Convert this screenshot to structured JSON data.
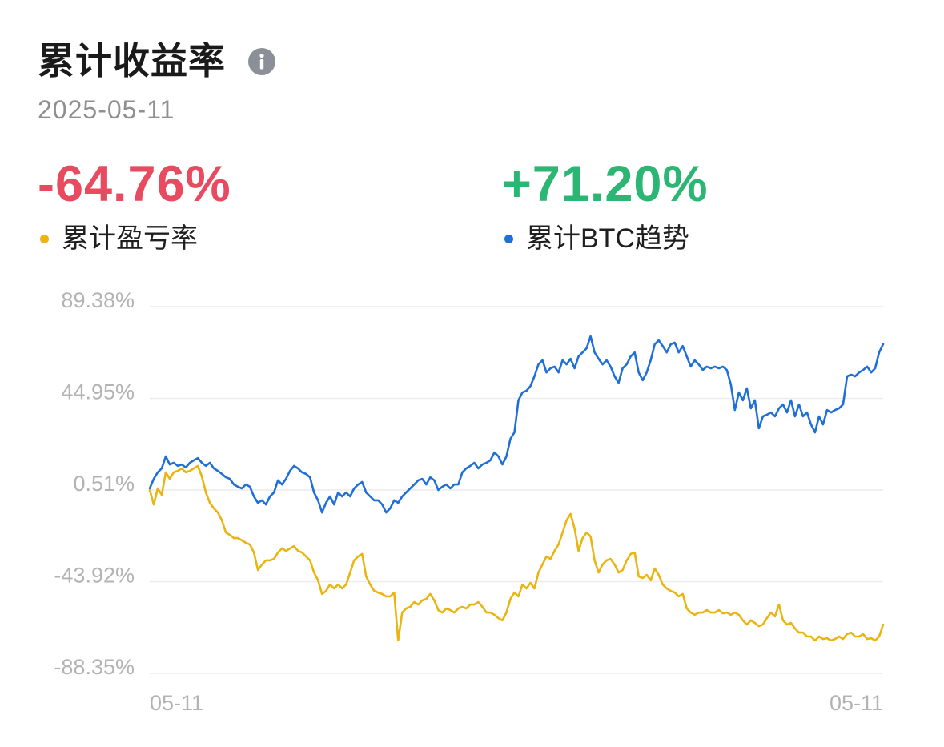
{
  "icons": {
    "info": "info-icon"
  },
  "chart_data": {
    "type": "line",
    "title": "累计收益率",
    "subtitle": "2025-05-11",
    "grid": true,
    "legend": "top",
    "ylim": [
      -88.35,
      89.38
    ],
    "y_ticks": [
      89.38,
      44.95,
      0.51,
      -43.92,
      -88.35
    ],
    "y_tick_labels": [
      "89.38%",
      "44.95%",
      "0.51%",
      "-43.92%",
      "-88.35%"
    ],
    "x_tick_labels": [
      "05-11",
      "05-11"
    ],
    "series": [
      {
        "name": "累计盈亏率",
        "latest_label": "-64.76%",
        "color": "#ebb40f",
        "value_color": "#e84a5f",
        "values": [
          0.5,
          -6.5,
          1.3,
          -1.8,
          9.1,
          5.9,
          9.1,
          9.8,
          11.0,
          9.1,
          9.8,
          11.0,
          12.2,
          7.1,
          -0.7,
          -5.7,
          -8.4,
          -10.4,
          -14.2,
          -20.1,
          -21.2,
          -22.8,
          -22.8,
          -23.9,
          -25.1,
          -25.9,
          -29.8,
          -38.3,
          -35.6,
          -33.6,
          -33.6,
          -32.9,
          -29.8,
          -27.8,
          -29.0,
          -27.8,
          -26.7,
          -29.0,
          -29.8,
          -31.7,
          -33.6,
          -39.5,
          -43.3,
          -49.9,
          -48.4,
          -45.3,
          -47.2,
          -45.3,
          -47.2,
          -45.3,
          -39.5,
          -33.6,
          -31.7,
          -30.5,
          -41.4,
          -45.3,
          -48.4,
          -49.2,
          -49.9,
          -51.1,
          -51.1,
          -49.2,
          -72.4,
          -58.9,
          -56.9,
          -56.1,
          -53.8,
          -55.0,
          -53.0,
          -52.3,
          -49.9,
          -53.0,
          -57.7,
          -58.9,
          -56.9,
          -57.7,
          -58.9,
          -56.9,
          -56.1,
          -56.9,
          -55.0,
          -55.0,
          -53.8,
          -56.1,
          -58.9,
          -58.9,
          -60.0,
          -61.6,
          -62.7,
          -58.9,
          -52.3,
          -49.2,
          -51.1,
          -45.3,
          -47.2,
          -44.5,
          -47.2,
          -39.5,
          -35.6,
          -31.7,
          -32.9,
          -29.0,
          -25.9,
          -20.1,
          -14.2,
          -11.1,
          -18.1,
          -29.0,
          -22.8,
          -20.1,
          -22.0,
          -33.6,
          -39.5,
          -35.6,
          -33.6,
          -32.9,
          -35.6,
          -39.5,
          -38.3,
          -33.6,
          -30.5,
          -29.8,
          -41.4,
          -42.2,
          -40.6,
          -43.3,
          -37.5,
          -40.6,
          -45.3,
          -47.2,
          -48.4,
          -49.2,
          -51.1,
          -49.9,
          -56.9,
          -58.9,
          -60.0,
          -58.9,
          -58.9,
          -57.7,
          -58.9,
          -58.9,
          -57.7,
          -59.3,
          -58.9,
          -60.0,
          -58.9,
          -60.0,
          -62.7,
          -64.7,
          -62.7,
          -63.9,
          -65.5,
          -64.7,
          -61.6,
          -58.9,
          -60.8,
          -55.0,
          -62.7,
          -64.7,
          -63.9,
          -66.6,
          -68.6,
          -68.6,
          -70.5,
          -70.5,
          -72.4,
          -70.5,
          -71.7,
          -71.3,
          -72.4,
          -71.7,
          -70.5,
          -71.7,
          -69.3,
          -68.6,
          -70.5,
          -70.5,
          -69.3,
          -71.7,
          -71.3,
          -72.4,
          -70.5,
          -64.76
        ]
      },
      {
        "name": "累计BTC趋势",
        "latest_label": "+71.20%",
        "color": "#1f6fda",
        "value_color": "#2bb673",
        "values": [
          1.3,
          5.9,
          9.1,
          11.0,
          16.8,
          12.9,
          13.7,
          12.2,
          12.9,
          11.4,
          13.7,
          14.9,
          16.0,
          13.7,
          12.2,
          13.7,
          11.0,
          9.8,
          8.3,
          6.7,
          5.9,
          3.2,
          2.1,
          1.3,
          3.2,
          2.1,
          -2.6,
          -5.7,
          -4.5,
          -6.5,
          -2.6,
          -0.7,
          5.2,
          3.2,
          5.9,
          9.8,
          12.2,
          11.0,
          9.1,
          8.3,
          6.7,
          -0.7,
          -4.5,
          -10.4,
          -5.7,
          -2.6,
          -6.5,
          -0.7,
          -2.6,
          -0.7,
          -2.6,
          1.3,
          3.2,
          4.4,
          -0.7,
          -2.6,
          -4.5,
          -4.5,
          -6.5,
          -10.4,
          -8.4,
          -4.5,
          -5.7,
          -2.6,
          -0.7,
          1.3,
          3.2,
          5.2,
          5.9,
          3.2,
          6.7,
          5.2,
          0.5,
          2.1,
          3.2,
          1.3,
          3.2,
          3.2,
          9.1,
          11.0,
          12.2,
          13.7,
          11.0,
          12.9,
          13.7,
          14.9,
          18.7,
          16.8,
          12.9,
          16.8,
          25.3,
          28.4,
          44.0,
          47.8,
          48.6,
          50.9,
          55.6,
          61.4,
          63.4,
          57.5,
          59.5,
          60.3,
          57.5,
          63.4,
          61.4,
          64.1,
          59.5,
          65.3,
          67.2,
          69.2,
          75.0,
          67.2,
          64.1,
          61.4,
          63.4,
          60.3,
          55.6,
          52.5,
          59.5,
          61.4,
          65.3,
          67.2,
          57.5,
          53.7,
          57.5,
          63.4,
          71.1,
          73.1,
          70.3,
          67.2,
          71.1,
          71.9,
          67.2,
          70.3,
          65.3,
          60.3,
          63.4,
          61.4,
          58.7,
          60.3,
          59.5,
          60.3,
          59.5,
          60.3,
          58.7,
          51.7,
          39.3,
          47.8,
          44.0,
          49.8,
          40.1,
          44.0,
          30.4,
          36.2,
          37.0,
          38.1,
          36.2,
          40.1,
          42.0,
          38.1,
          44.0,
          36.2,
          42.0,
          36.2,
          38.1,
          32.3,
          28.4,
          36.2,
          32.3,
          39.3,
          38.1,
          39.3,
          40.1,
          42.0,
          55.6,
          56.4,
          55.6,
          57.5,
          58.7,
          60.3,
          57.5,
          59.5,
          67.2,
          71.2
        ]
      }
    ]
  }
}
